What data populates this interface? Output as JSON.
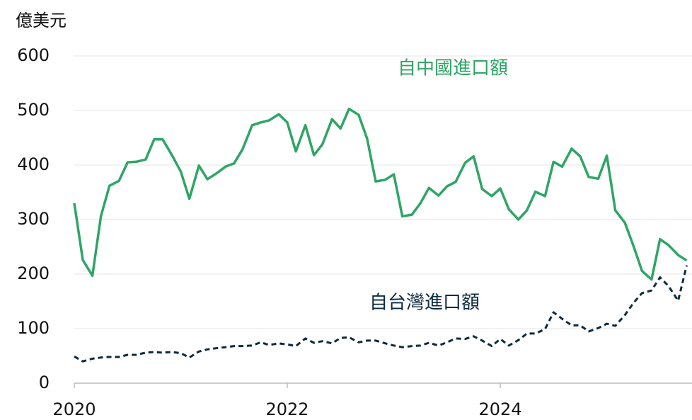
{
  "chart_data": {
    "type": "line",
    "ylabel": "億美元",
    "x": [
      2020,
      2020.08,
      2020.17,
      2020.25,
      2020.33,
      2020.42,
      2020.5,
      2020.58,
      2020.67,
      2020.75,
      2020.83,
      2020.92,
      2021,
      2021.08,
      2021.17,
      2021.25,
      2021.33,
      2021.42,
      2021.5,
      2021.58,
      2021.67,
      2021.75,
      2021.83,
      2021.92,
      2022,
      2022.08,
      2022.17,
      2022.25,
      2022.33,
      2022.42,
      2022.5,
      2022.58,
      2022.67,
      2022.75,
      2022.83,
      2022.92,
      2023,
      2023.08,
      2023.17,
      2023.25,
      2023.33,
      2023.42,
      2023.5,
      2023.58,
      2023.67,
      2023.75,
      2023.83,
      2023.92,
      2024,
      2024.08,
      2024.17,
      2024.25,
      2024.33,
      2024.42,
      2024.5,
      2024.58,
      2024.67,
      2024.75,
      2024.83,
      2024.92,
      2025,
      2025.08,
      2025.17,
      2025.25,
      2025.33,
      2025.42,
      2025.5,
      2025.58,
      2025.67,
      2025.75
    ],
    "series": [
      {
        "name": "自中國進口額",
        "color": "#2fa566",
        "dash": false,
        "values": [
          330,
          226,
          197,
          306,
          362,
          371,
          405,
          406,
          410,
          447,
          447,
          417,
          388,
          338,
          399,
          374,
          384,
          397,
          403,
          429,
          473,
          478,
          482,
          493,
          478,
          425,
          473,
          418,
          438,
          484,
          467,
          503,
          492,
          448,
          370,
          373,
          383,
          306,
          309,
          330,
          358,
          344,
          361,
          369,
          404,
          416,
          356,
          343,
          357,
          319,
          300,
          317,
          351,
          343,
          406,
          397,
          430,
          416,
          378,
          375,
          417,
          317,
          294,
          252,
          206,
          190,
          264,
          253,
          235,
          225
        ]
      },
      {
        "name": "自台灣進口額",
        "color": "#0d2a3f",
        "dash": true,
        "values": [
          49,
          40,
          45,
          47,
          48,
          48,
          52,
          52,
          56,
          57,
          56,
          57,
          55,
          47,
          58,
          62,
          64,
          66,
          68,
          68,
          69,
          75,
          70,
          73,
          71,
          68,
          82,
          74,
          77,
          73,
          83,
          84,
          75,
          78,
          78,
          73,
          69,
          66,
          68,
          69,
          74,
          69,
          75,
          82,
          81,
          86,
          78,
          68,
          81,
          69,
          79,
          91,
          91,
          99,
          130,
          118,
          106,
          106,
          95,
          101,
          109,
          105,
          125,
          147,
          165,
          170,
          194,
          178,
          151,
          216
        ]
      }
    ],
    "xlim": [
      2020,
      2025.8
    ],
    "xticks": [
      2020,
      2022,
      2024
    ],
    "ylim": [
      0,
      600
    ],
    "yticks": [
      0,
      100,
      200,
      300,
      400,
      500,
      600
    ],
    "grid": true
  }
}
